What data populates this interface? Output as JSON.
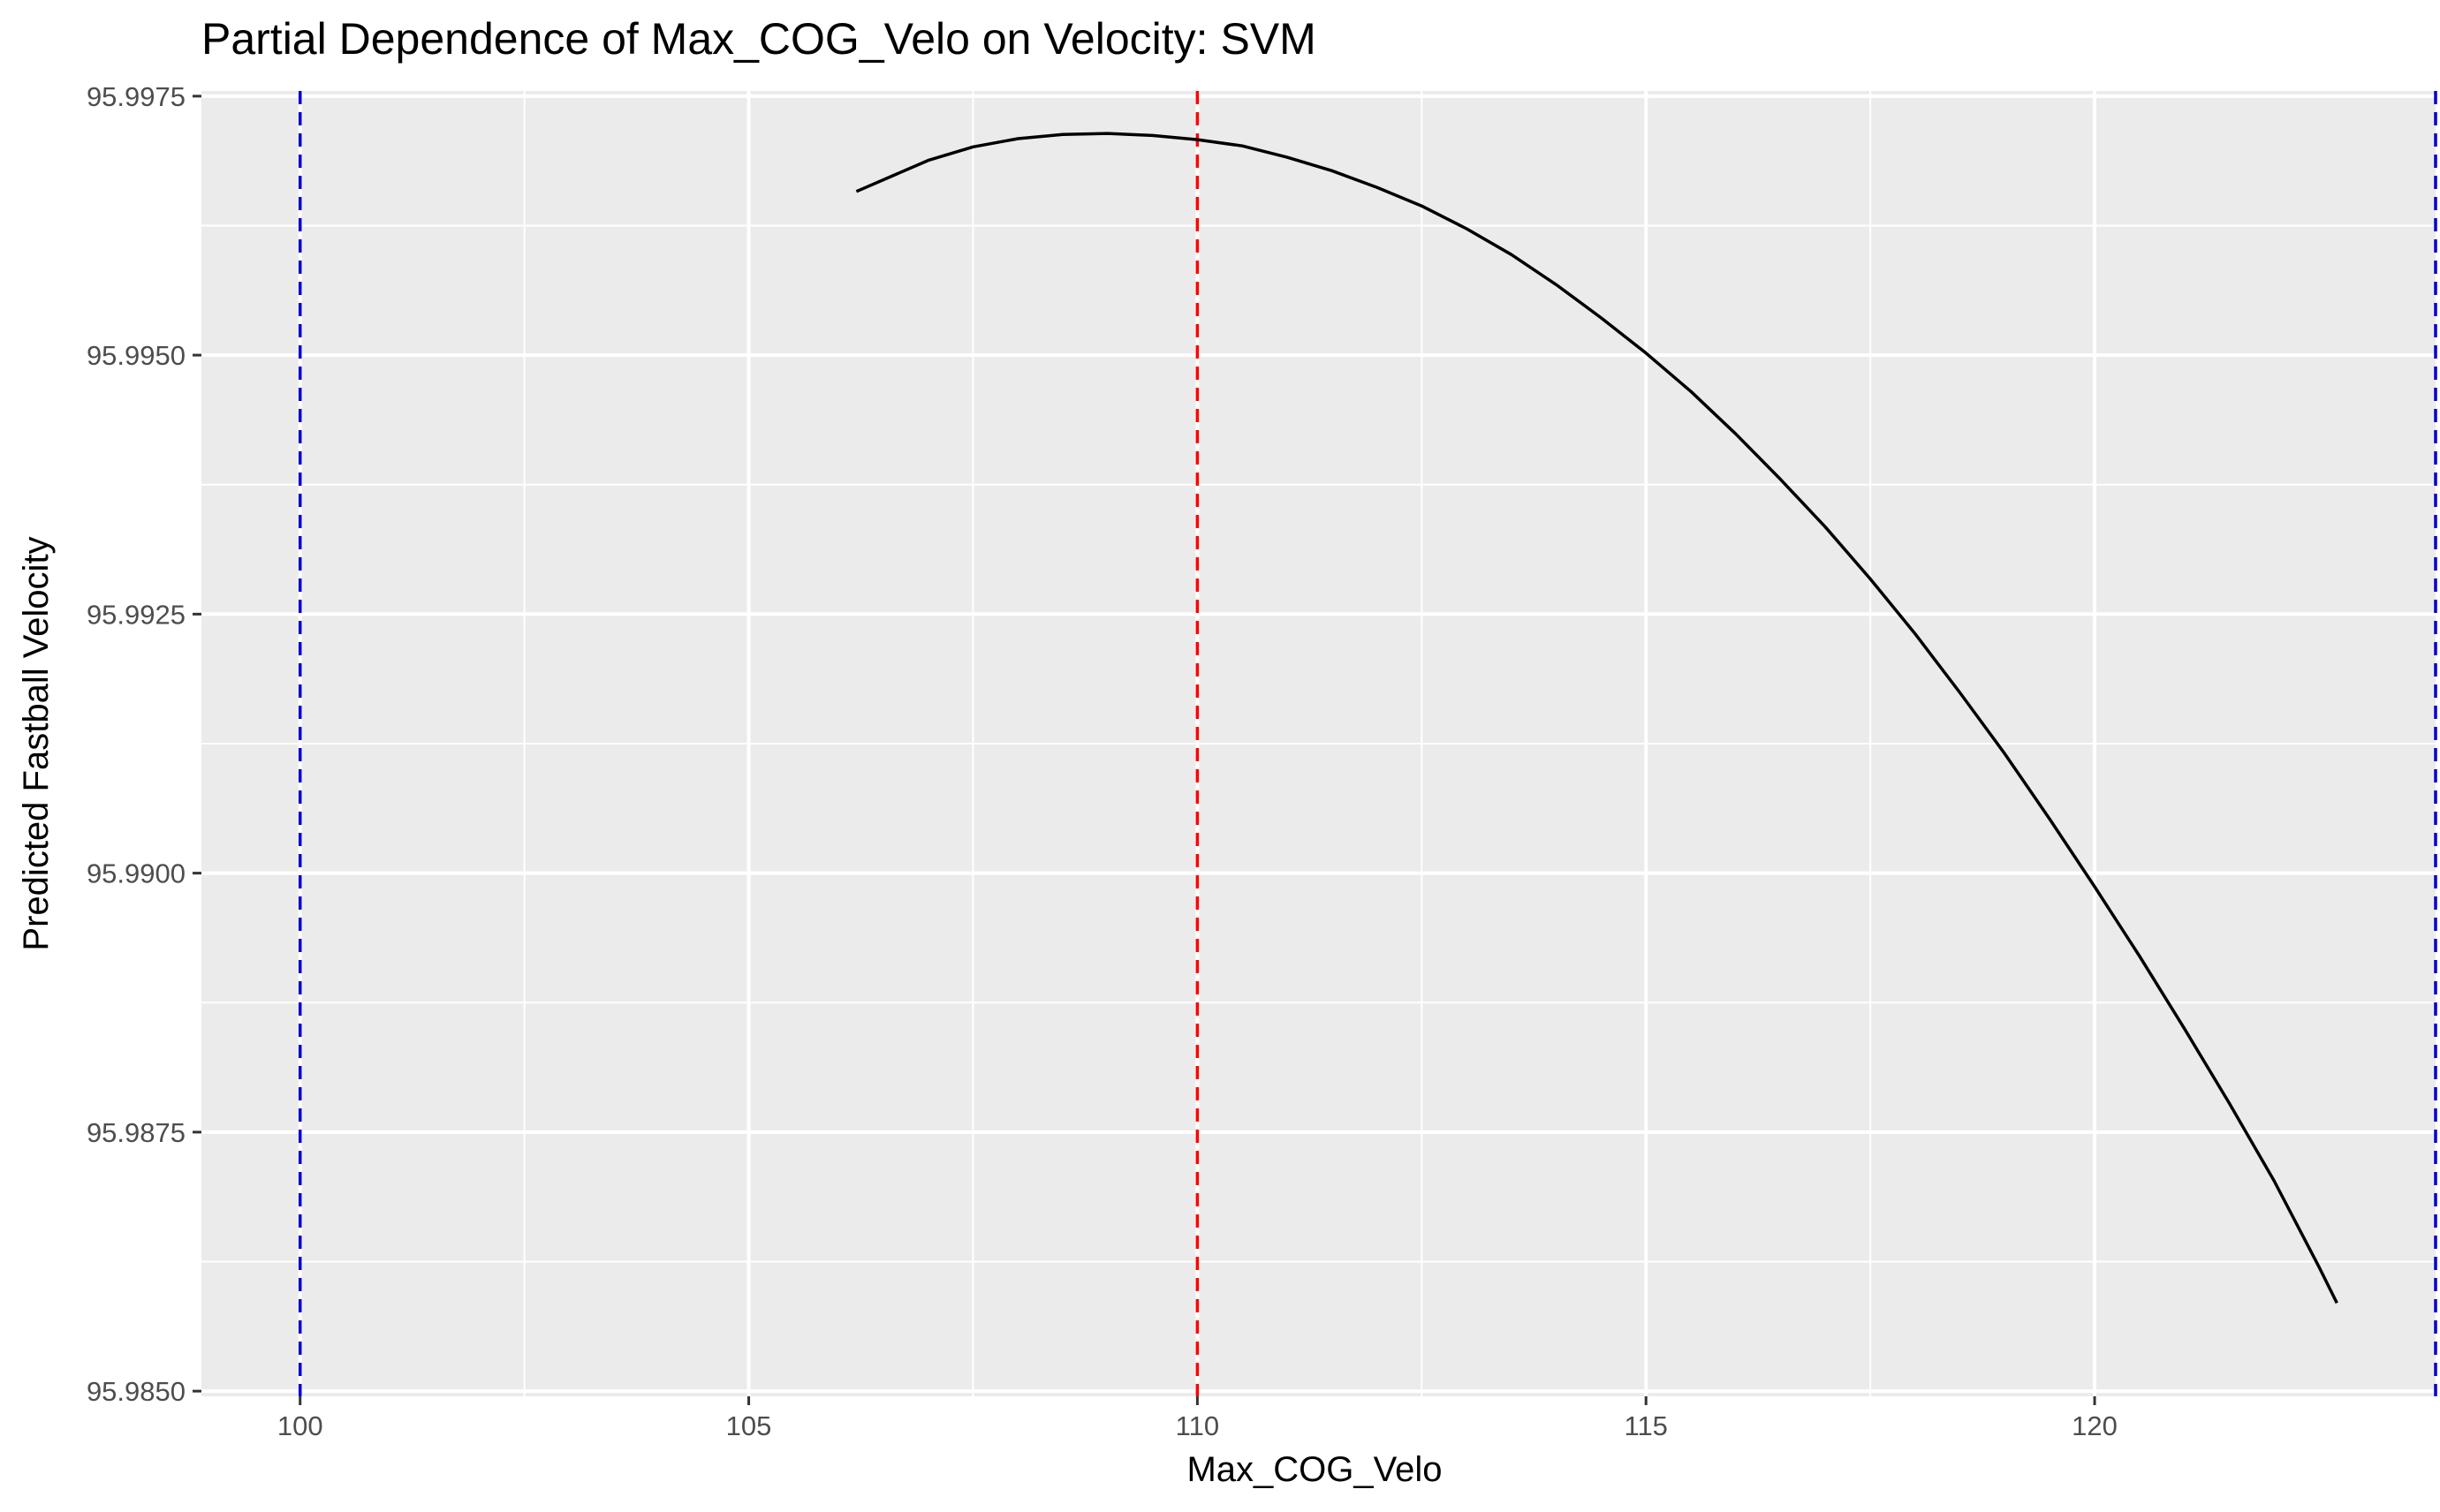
{
  "chart_data": {
    "type": "line",
    "title": "Partial Dependence of Max_COG_Velo on Velocity: SVM",
    "xlabel": "Max_COG_Velo",
    "ylabel": "Predicted Fastball Velocity",
    "xlim": [
      98.9,
      123.8
    ],
    "ylim": [
      95.98495,
      95.99755
    ],
    "x_ticks": [
      100,
      105,
      110,
      115,
      120
    ],
    "x_tick_labels": [
      "100",
      "105",
      "110",
      "115",
      "120"
    ],
    "y_ticks": [
      95.985,
      95.9875,
      95.99,
      95.9925,
      95.995,
      95.9975
    ],
    "y_tick_labels": [
      "95.9850",
      "95.9875",
      "95.9900",
      "95.9925",
      "95.9950",
      "95.9975"
    ],
    "grid": true,
    "series": [
      {
        "color": "#000000",
        "x": [
          106.2,
          107.0,
          107.5,
          108.0,
          108.5,
          109.0,
          109.5,
          110.0,
          110.5,
          111.0,
          111.5,
          112.0,
          112.5,
          113.0,
          113.5,
          114.0,
          114.5,
          115.0,
          115.5,
          116.0,
          116.5,
          117.0,
          117.5,
          118.0,
          118.5,
          119.0,
          119.5,
          120.0,
          120.5,
          121.0,
          121.5,
          122.0,
          122.5,
          122.7
        ],
        "y": [
          95.99658,
          95.99688,
          95.99701,
          95.99709,
          95.99713,
          95.99714,
          95.99712,
          95.99708,
          95.99702,
          95.99691,
          95.99678,
          95.99662,
          95.99644,
          95.99622,
          95.99597,
          95.99568,
          95.99536,
          95.99502,
          95.99465,
          95.99424,
          95.9938,
          95.99334,
          95.99284,
          95.99231,
          95.99174,
          95.99115,
          95.99052,
          95.98987,
          95.9892,
          95.9885,
          95.98778,
          95.98703,
          95.9862,
          95.98585
        ]
      }
    ],
    "reference_lines": [
      {
        "orientation": "vertical",
        "x": 100,
        "color": "#0000cc",
        "style": "dashed"
      },
      {
        "orientation": "vertical",
        "x": 110,
        "color": "#ff0000",
        "style": "dashed"
      },
      {
        "orientation": "vertical",
        "x": 123.8,
        "color": "#0000cc",
        "style": "dashed"
      }
    ],
    "colors": {
      "panel_background": "#ebebeb",
      "grid": "#ffffff",
      "line": "#000000"
    }
  }
}
